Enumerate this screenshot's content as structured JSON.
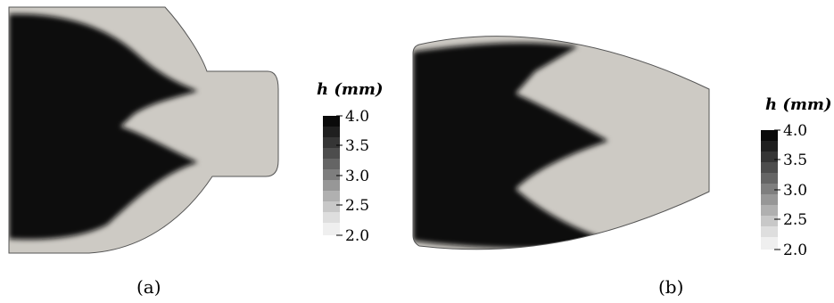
{
  "panels": [
    {
      "caption": "(a)",
      "colorbar": {
        "label": "h (mm)",
        "ticks": [
          "4.0",
          "3.5",
          "3.0",
          "2.5",
          "2.0"
        ],
        "range": [
          2.0,
          4.0
        ]
      }
    },
    {
      "caption": "(b)",
      "colorbar": {
        "label": "h (mm)",
        "ticks": [
          "4.0",
          "3.5",
          "3.0",
          "2.5",
          "2.0"
        ],
        "range": [
          2.0,
          4.0
        ]
      }
    }
  ],
  "colors": {
    "dark_material": "#0a0a0a",
    "light_material": "#cdcac4",
    "outline": "#555555"
  }
}
